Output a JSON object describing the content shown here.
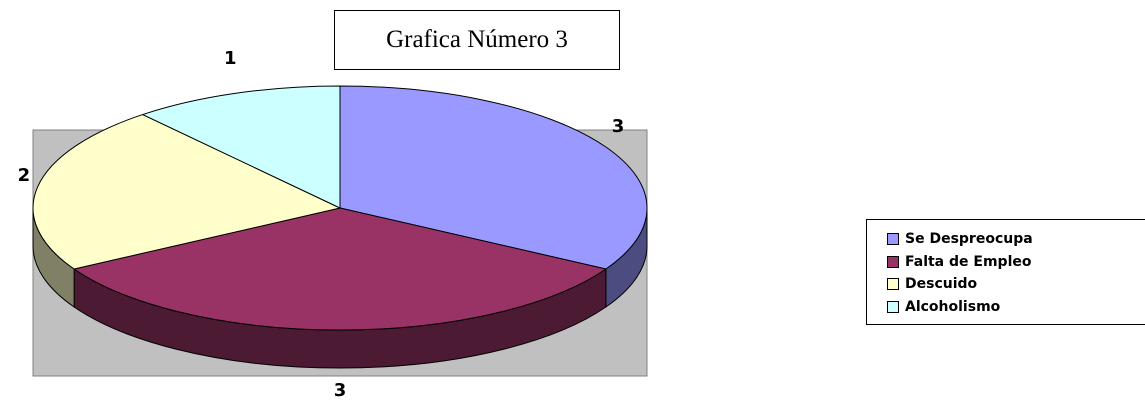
{
  "title": "Grafica Número 3",
  "chart_data": {
    "type": "pie",
    "style": "3d",
    "title": "Grafica Número 3",
    "categories": [
      "Se Despreocupa",
      "Falta de Empleo",
      "Descuido",
      "Alcoholismo"
    ],
    "values": [
      3,
      3,
      2,
      1
    ],
    "data_labels": [
      "3",
      "3",
      "2",
      "1"
    ],
    "colors": {
      "Se Despreocupa": "#9999ff",
      "Falta de Empleo": "#993366",
      "Descuido": "#ffffcc",
      "Alcoholismo": "#ccffff"
    },
    "side_colors": {
      "Se Despreocupa": "#4c4c80",
      "Falta de Empleo": "#4d1a33",
      "Descuido": "#808066",
      "Alcoholismo": "#668080"
    },
    "plot_area_color": "#c0c0c0",
    "legend_position": "right"
  },
  "legend": {
    "items": [
      {
        "label": "Se Despreocupa",
        "color": "#9999ff"
      },
      {
        "label": "Falta de Empleo",
        "color": "#993366"
      },
      {
        "label": "Descuido",
        "color": "#ffffcc"
      },
      {
        "label": "Alcoholismo",
        "color": "#ccffff"
      }
    ]
  }
}
